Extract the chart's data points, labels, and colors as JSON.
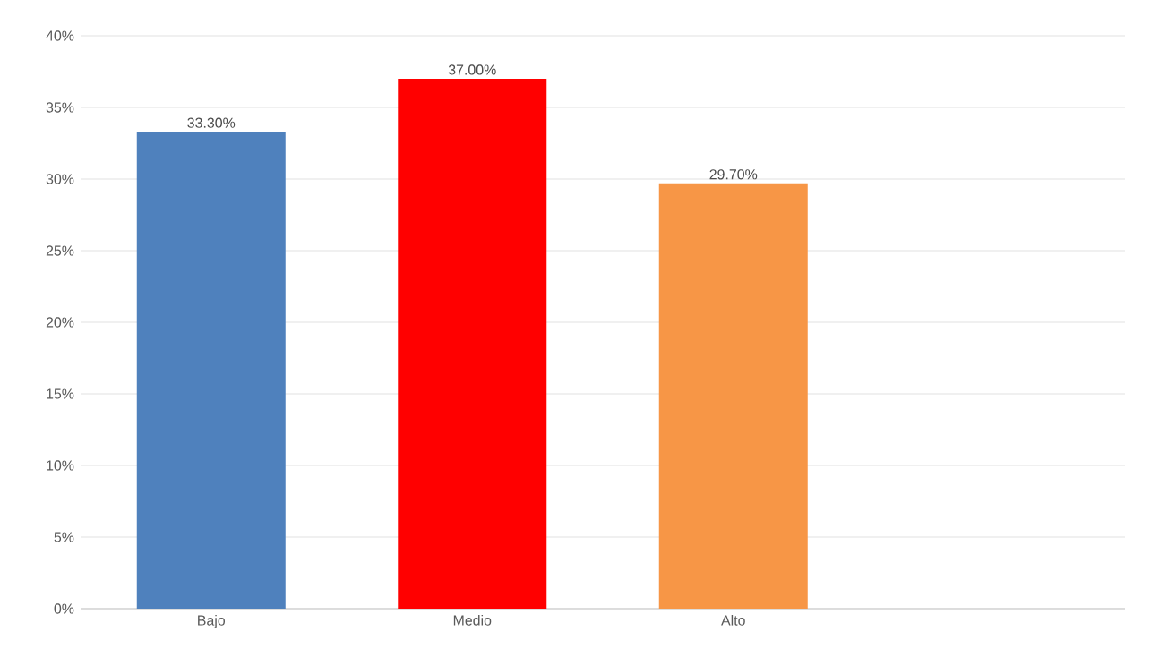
{
  "chart_data": {
    "type": "bar",
    "categories": [
      "Bajo",
      "Medio",
      "Alto",
      null
    ],
    "values": [
      33.3,
      37.0,
      29.7,
      null
    ],
    "colors": [
      "#4f81bd",
      "#ff0000",
      "#f79646",
      "#4f81bd"
    ],
    "value_labels": [
      "33.30%",
      "37.00%",
      "29.70%",
      null
    ],
    "ylim": [
      0,
      40
    ],
    "yticks": [
      {
        "value": 0,
        "label": "0%"
      },
      {
        "value": 5,
        "label": "5%"
      },
      {
        "value": 10,
        "label": "10%"
      },
      {
        "value": 15,
        "label": "15%"
      },
      {
        "value": 20,
        "label": "20%"
      },
      {
        "value": 25,
        "label": "25%"
      },
      {
        "value": 30,
        "label": "30%"
      },
      {
        "value": 35,
        "label": "35%"
      },
      {
        "value": 40,
        "label": "40%"
      }
    ],
    "grid": "y"
  }
}
